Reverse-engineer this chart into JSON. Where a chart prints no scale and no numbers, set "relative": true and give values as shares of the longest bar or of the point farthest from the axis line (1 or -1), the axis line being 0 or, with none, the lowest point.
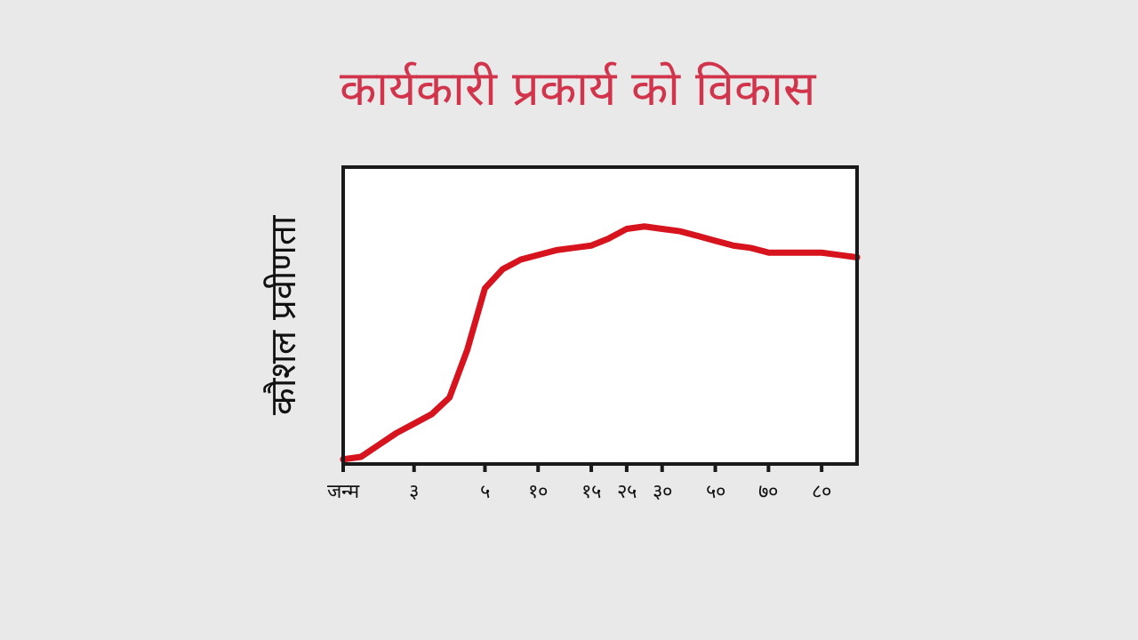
{
  "chart_data": {
    "type": "line",
    "title": "कार्यकारी प्रकार्य को विकास",
    "ylabel": "कौशल प्रवीणता",
    "relative": true,
    "categories": [
      "जन्म",
      null,
      null,
      null,
      "३",
      null,
      null,
      null,
      "५",
      null,
      null,
      "१०",
      null,
      null,
      "१५",
      null,
      "२५",
      null,
      "३०",
      null,
      null,
      "५०",
      null,
      null,
      "७०",
      null,
      null,
      "८०",
      null,
      null
    ],
    "series": [
      {
        "color": "#d7141e",
        "values": [
          0.02,
          0.03,
          0.08,
          0.13,
          0.17,
          0.21,
          0.28,
          0.48,
          0.74,
          0.82,
          0.86,
          0.88,
          0.9,
          0.91,
          0.92,
          0.95,
          0.99,
          1,
          0.99,
          0.98,
          0.96,
          0.94,
          0.92,
          0.91,
          0.89,
          0.89,
          0.89,
          0.89,
          0.88,
          0.87
        ]
      }
    ]
  }
}
